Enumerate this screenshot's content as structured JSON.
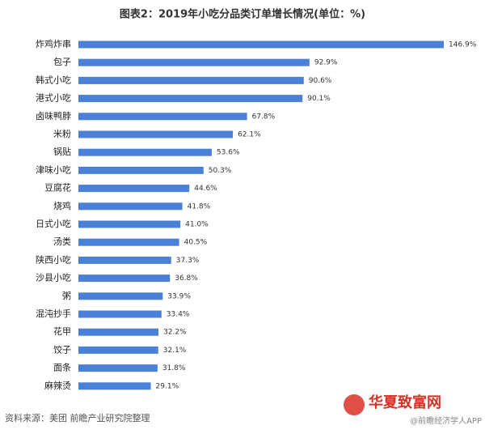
{
  "chart_data": {
    "type": "hbar",
    "title": "图表2：2019年小吃分品类订单增长情况(单位：%)",
    "categories": [
      "炸鸡炸串",
      "包子",
      "韩式小吃",
      "港式小吃",
      "卤味鸭脖",
      "米粉",
      "锅贴",
      "津味小吃",
      "豆腐花",
      "烧鸡",
      "日式小吃",
      "汤类",
      "陕西小吃",
      "沙县小吃",
      "粥",
      "混沌抄手",
      "花甲",
      "饺子",
      "面条",
      "麻辣烫"
    ],
    "values": [
      146.9,
      92.9,
      90.6,
      90.1,
      67.8,
      62.1,
      53.6,
      50.3,
      44.6,
      41.8,
      41.0,
      40.5,
      37.3,
      36.8,
      33.9,
      33.4,
      32.2,
      32.1,
      31.8,
      29.1
    ],
    "value_labels": [
      "146.9%",
      "92.9%",
      "90.6%",
      "90.1%",
      "67.8%",
      "62.1%",
      "53.6%",
      "50.3%",
      "44.6%",
      "41.8%",
      "41.0%",
      "40.5%",
      "37.3%",
      "36.8%",
      "33.9%",
      "33.4%",
      "32.2%",
      "32.1%",
      "31.8%",
      "29.1%"
    ],
    "color": "#4a80d8",
    "source": "资料来源：美团 前瞻产业研究院整理",
    "watermark": "华夏致富网",
    "watermark_sub": "@前瞻经济学人APP"
  }
}
